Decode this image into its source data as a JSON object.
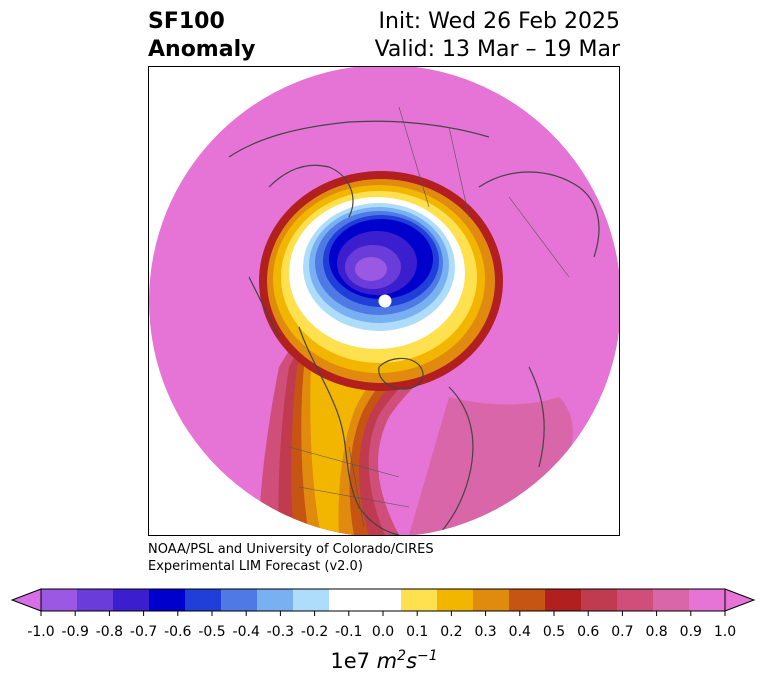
{
  "title": {
    "line1_left": "SF100",
    "line2_left": "Anomaly",
    "line1_right": "Init: Wed 26 Feb 2025",
    "line2_right": "Valid: 13 Mar – 19 Mar"
  },
  "credit": {
    "line1": "NOAA/PSL and University of Colorado/CIRES",
    "line2": "Experimental LIM Forecast (v2.0)"
  },
  "colorbar": {
    "ticks": [
      "-1.0",
      "-0.9",
      "-0.8",
      "-0.7",
      "-0.6",
      "-0.5",
      "-0.4",
      "-0.3",
      "-0.2",
      "-0.1",
      "0.0",
      "0.1",
      "0.2",
      "0.3",
      "0.4",
      "0.5",
      "0.6",
      "0.7",
      "0.8",
      "0.9",
      "1.0"
    ],
    "colors": [
      "#9b59e3",
      "#6a3ddb",
      "#3b1fcf",
      "#0000cc",
      "#1f3fd8",
      "#4f7ae6",
      "#79b0f2",
      "#aedcfb",
      "#ffffff",
      "#ffffff",
      "#ffe04f",
      "#f2b600",
      "#e08a0e",
      "#c65412",
      "#b21f1f",
      "#c03a50",
      "#cf4f7a",
      "#d866a8",
      "#e574d6"
    ],
    "extend_low_color": "#d66ee6",
    "extend_high_color": "#e574d6",
    "unit_prefix": "1e7 ",
    "unit_m": "m",
    "unit_m_exp": "2",
    "unit_s": "s",
    "unit_s_exp": "−1"
  },
  "map": {
    "projection": "north polar stereographic",
    "background_color": "#e574d6",
    "pole_marker_color": "#ffffff",
    "coastline_color": "#444444"
  }
}
